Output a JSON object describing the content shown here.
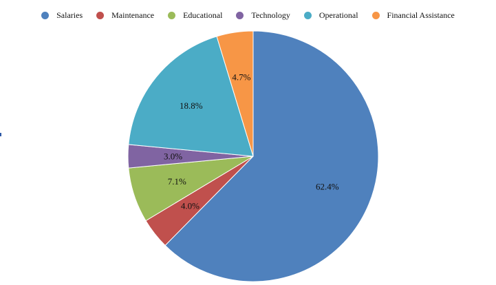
{
  "chart_data": {
    "type": "pie",
    "title": "",
    "legend_position": "top",
    "start_angle_deg": 0,
    "direction": "clockwise",
    "slices": [
      {
        "name": "Salaries",
        "value": 62.4,
        "label": "62.4%",
        "color": "#4f81bd"
      },
      {
        "name": "Maintenance",
        "value": 4.0,
        "label": "4.0%",
        "color": "#c0504d"
      },
      {
        "name": "Educational",
        "value": 7.1,
        "label": "7.1%",
        "color": "#9bbb59"
      },
      {
        "name": "Technology",
        "value": 3.0,
        "label": "3.0%",
        "color": "#8064a2"
      },
      {
        "name": "Operational",
        "value": 18.8,
        "label": "18.8%",
        "color": "#4bacc6"
      },
      {
        "name": "Financial Assistance",
        "value": 4.7,
        "label": "4.7%",
        "color": "#f79646"
      }
    ]
  }
}
